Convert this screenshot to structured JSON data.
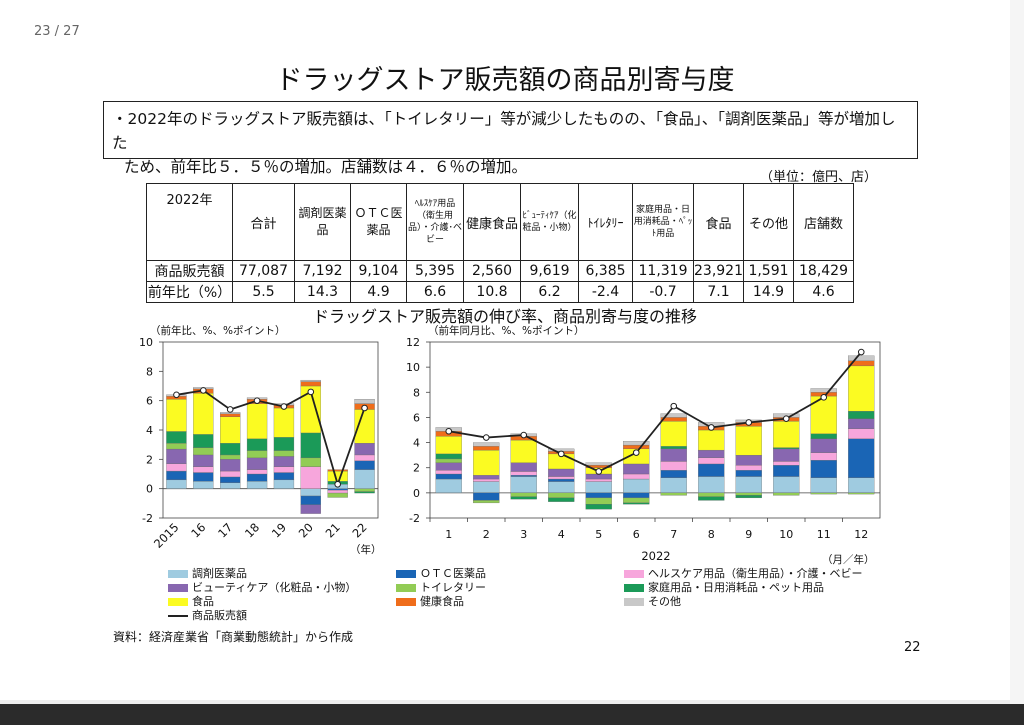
{
  "viewer": {
    "page_indicator": "23 / 27"
  },
  "slide": {
    "title": "ドラッグストア販売額の商品別寄与度",
    "summary_line1": "・2022年のドラッグストア販売額は、「トイレタリー」等が減少したものの、「食品」、「調剤医薬品」等が増加した",
    "summary_line2": "ため、前年比５．５％の増加。店舗数は４．６％の増加。",
    "unit": "（単位：億円、店）",
    "chart_title": "ドラッグストア販売額の伸び率、商品別寄与度の推移",
    "source": "資料：経済産業省「商業動態統計」から作成",
    "page_number": "22"
  },
  "table": {
    "corner": "2022年",
    "headers": [
      {
        "label": "合計",
        "style": "normal"
      },
      {
        "label": "調剤医薬品",
        "style": "mid"
      },
      {
        "label": "ＯＴＣ医薬品",
        "style": "mid"
      },
      {
        "label": "ﾍﾙｽｹｱ用品（衛生用品）・介護･ベビー",
        "style": "small"
      },
      {
        "label": "健康食品",
        "style": "normal"
      },
      {
        "label": "ﾋﾞｭｰﾃｨｹｱ（化粧品・小物）",
        "style": "small"
      },
      {
        "label": "ﾄｲﾚﾀﾘｰ",
        "style": "normal"
      },
      {
        "label": "家庭用品・日用消耗品・ﾍﾟｯﾄ用品",
        "style": "small"
      },
      {
        "label": "食品",
        "style": "normal"
      },
      {
        "label": "その他",
        "style": "normal"
      },
      {
        "label": "店舗数",
        "style": "normal"
      }
    ],
    "rows": [
      {
        "label": "商品販売額",
        "values": [
          "77,087",
          "7,192",
          "9,104",
          "5,395",
          "2,560",
          "9,619",
          "6,385",
          "11,319",
          "23,921",
          "1,591",
          "18,429"
        ]
      },
      {
        "label": "前年比（%）",
        "values": [
          "5.5",
          "14.3",
          "4.9",
          "6.6",
          "10.8",
          "6.2",
          "-2.4",
          "-0.7",
          "7.1",
          "14.9",
          "4.6"
        ]
      }
    ]
  },
  "colors": {
    "調剤医薬品": "#9fcbe0",
    "ＯＴＣ医薬品": "#1a65b5",
    "ヘルスケア": "#f7a6dc",
    "ビューティケア": "#8867b0",
    "トイレタリー": "#92cc55",
    "家庭用品": "#1b9a58",
    "食品": "#fbfb22",
    "健康食品": "#ef6d1b",
    "その他": "#c8c8c8",
    "line": "#222222"
  },
  "chart_data": [
    {
      "type": "bar",
      "stacked": true,
      "ylabel": "（前年比、%、%ポイント）",
      "x_unit": "（年）",
      "ylim": [
        -2,
        10
      ],
      "yticks": [
        "-2",
        "0",
        "2",
        "4",
        "6",
        "8",
        "10"
      ],
      "categories": [
        "2015",
        "16",
        "17",
        "18",
        "19",
        "20",
        "21",
        "22"
      ],
      "series": [
        {
          "key": "調剤医薬品",
          "values": [
            0.6,
            0.5,
            0.4,
            0.5,
            0.6,
            -0.5,
            0.3,
            1.3
          ]
        },
        {
          "key": "ＯＴＣ医薬品",
          "values": [
            0.6,
            0.6,
            0.4,
            0.5,
            0.5,
            -0.6,
            -0.1,
            0.6
          ]
        },
        {
          "key": "ヘルスケア",
          "values": [
            0.5,
            0.4,
            0.4,
            0.3,
            0.4,
            1.5,
            -0.2,
            0.4
          ]
        },
        {
          "key": "ビューティケア",
          "values": [
            1.0,
            0.8,
            0.8,
            0.8,
            0.7,
            -0.6,
            0.0,
            0.8
          ]
        },
        {
          "key": "トイレタリー",
          "values": [
            0.4,
            0.5,
            0.3,
            0.5,
            0.4,
            0.6,
            -0.3,
            -0.2
          ]
        },
        {
          "key": "家庭用品",
          "values": [
            0.8,
            0.9,
            0.8,
            0.8,
            0.9,
            1.7,
            0.2,
            -0.1
          ]
        },
        {
          "key": "食品",
          "values": [
            2.2,
            2.8,
            1.8,
            2.4,
            2.0,
            3.2,
            0.7,
            2.3
          ]
        },
        {
          "key": "健康食品",
          "values": [
            0.2,
            0.3,
            0.2,
            0.3,
            0.2,
            0.3,
            0.1,
            0.4
          ]
        },
        {
          "key": "その他",
          "values": [
            0.1,
            0.1,
            0.1,
            0.1,
            0.1,
            0.1,
            0.0,
            0.3
          ]
        }
      ],
      "line": {
        "key": "商品販売額",
        "values": [
          6.4,
          6.7,
          5.4,
          6.0,
          5.6,
          6.6,
          0.3,
          5.5
        ]
      }
    },
    {
      "type": "bar",
      "stacked": true,
      "ylabel": "（前年同月比、%、%ポイント）",
      "x_unit": "（月／年）",
      "x_group_label": "2022",
      "ylim": [
        -2,
        12
      ],
      "yticks": [
        "-2",
        "0",
        "2",
        "4",
        "6",
        "8",
        "10",
        "12"
      ],
      "categories": [
        "1",
        "2",
        "3",
        "4",
        "5",
        "6",
        "7",
        "8",
        "9",
        "10",
        "11",
        "12"
      ],
      "series": [
        {
          "key": "調剤医薬品",
          "values": [
            1.1,
            0.9,
            1.3,
            0.9,
            0.9,
            1.1,
            1.2,
            1.3,
            1.3,
            1.3,
            1.2,
            1.2
          ]
        },
        {
          "key": "ＯＴＣ医薬品",
          "values": [
            0.4,
            -0.6,
            0.1,
            0.2,
            -0.4,
            -0.4,
            0.6,
            1.0,
            0.5,
            0.9,
            1.4,
            3.1
          ]
        },
        {
          "key": "ヘルスケア",
          "values": [
            0.3,
            0.2,
            0.3,
            0.2,
            0.2,
            0.4,
            0.7,
            0.5,
            0.4,
            0.3,
            0.6,
            0.8
          ]
        },
        {
          "key": "ビューティケア",
          "values": [
            0.6,
            0.3,
            0.7,
            0.6,
            0.4,
            0.8,
            1.0,
            0.6,
            0.8,
            1.0,
            1.1,
            0.8
          ]
        },
        {
          "key": "トイレタリー",
          "values": [
            0.3,
            -0.2,
            -0.3,
            -0.4,
            -0.5,
            -0.4,
            -0.2,
            -0.3,
            -0.2,
            -0.2,
            -0.1,
            -0.1
          ]
        },
        {
          "key": "家庭用品",
          "values": [
            0.4,
            0.0,
            -0.2,
            -0.3,
            -0.4,
            -0.1,
            0.2,
            -0.3,
            -0.2,
            0.1,
            0.4,
            0.6
          ]
        },
        {
          "key": "食品",
          "values": [
            1.4,
            2.0,
            1.8,
            1.2,
            0.5,
            1.2,
            2.0,
            1.6,
            2.3,
            2.1,
            3.0,
            3.6
          ]
        },
        {
          "key": "健康食品",
          "values": [
            0.4,
            0.3,
            0.3,
            0.2,
            0.2,
            0.3,
            0.3,
            0.3,
            0.3,
            0.3,
            0.3,
            0.4
          ]
        },
        {
          "key": "その他",
          "values": [
            0.3,
            0.3,
            0.2,
            0.2,
            0.2,
            0.3,
            0.3,
            0.3,
            0.2,
            0.3,
            0.3,
            0.4
          ]
        }
      ],
      "line": {
        "key": "商品販売額",
        "values": [
          4.9,
          4.4,
          4.6,
          3.1,
          1.7,
          3.2,
          6.9,
          5.2,
          5.6,
          5.9,
          7.6,
          11.2
        ]
      }
    }
  ],
  "legend": [
    {
      "key": "調剤医薬品",
      "label": "調剤医薬品",
      "kind": "bar"
    },
    {
      "key": "ＯＴＣ医薬品",
      "label": "ＯＴＣ医薬品",
      "kind": "bar"
    },
    {
      "key": "ヘルスケア",
      "label": "ヘルスケア用品（衛生用品）・介護・ベビー",
      "kind": "bar"
    },
    {
      "key": "ビューティケア",
      "label": "ビューティケア（化粧品・小物）",
      "kind": "bar"
    },
    {
      "key": "トイレタリー",
      "label": "トイレタリー",
      "kind": "bar"
    },
    {
      "key": "家庭用品",
      "label": "家庭用品・日用消耗品・ペット用品",
      "kind": "bar"
    },
    {
      "key": "食品",
      "label": "食品",
      "kind": "bar"
    },
    {
      "key": "健康食品",
      "label": "健康食品",
      "kind": "bar"
    },
    {
      "key": "その他",
      "label": "その他",
      "kind": "bar"
    },
    {
      "key": "line",
      "label": "商品販売額",
      "kind": "line"
    }
  ]
}
